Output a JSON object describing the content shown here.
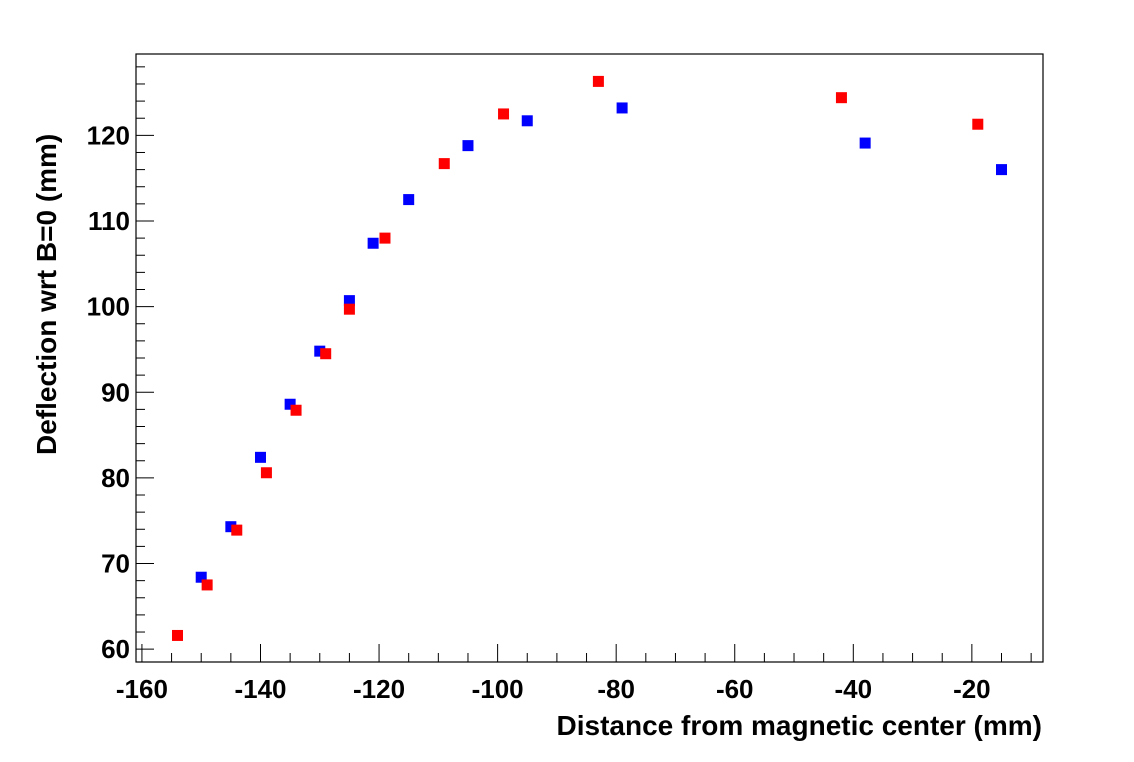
{
  "chart_data": {
    "type": "scatter",
    "xlabel": "Distance from magnetic center (mm)",
    "ylabel": "Deflection wrt B=0 (mm)",
    "xlim": [
      -161,
      -8
    ],
    "ylim": [
      58.5,
      129.5
    ],
    "x_ticks": [
      -160,
      -140,
      -120,
      -100,
      -80,
      -60,
      -40,
      -20
    ],
    "y_ticks": [
      60,
      70,
      80,
      90,
      100,
      110,
      120
    ],
    "grid": false,
    "legend": "none",
    "series": [
      {
        "color": "#0000ff",
        "marker": "square",
        "points": [
          {
            "x": -150,
            "y": 68.4
          },
          {
            "x": -145,
            "y": 74.3
          },
          {
            "x": -140,
            "y": 82.4
          },
          {
            "x": -135,
            "y": 88.6
          },
          {
            "x": -130,
            "y": 94.8
          },
          {
            "x": -125,
            "y": 100.7
          },
          {
            "x": -121,
            "y": 107.4
          },
          {
            "x": -115,
            "y": 112.5
          },
          {
            "x": -105,
            "y": 118.8
          },
          {
            "x": -95,
            "y": 121.7
          },
          {
            "x": -79,
            "y": 123.2
          },
          {
            "x": -38,
            "y": 119.1
          },
          {
            "x": -15,
            "y": 116.0
          }
        ]
      },
      {
        "color": "#ff0000",
        "marker": "square",
        "points": [
          {
            "x": -154,
            "y": 61.6
          },
          {
            "x": -149,
            "y": 67.5
          },
          {
            "x": -144,
            "y": 73.9
          },
          {
            "x": -139,
            "y": 80.6
          },
          {
            "x": -134,
            "y": 87.9
          },
          {
            "x": -129,
            "y": 94.5
          },
          {
            "x": -125,
            "y": 99.7
          },
          {
            "x": -119,
            "y": 108.0
          },
          {
            "x": -109,
            "y": 116.7
          },
          {
            "x": -99,
            "y": 122.5
          },
          {
            "x": -83,
            "y": 126.3
          },
          {
            "x": -42,
            "y": 124.4
          },
          {
            "x": -19,
            "y": 121.3
          }
        ]
      }
    ]
  }
}
